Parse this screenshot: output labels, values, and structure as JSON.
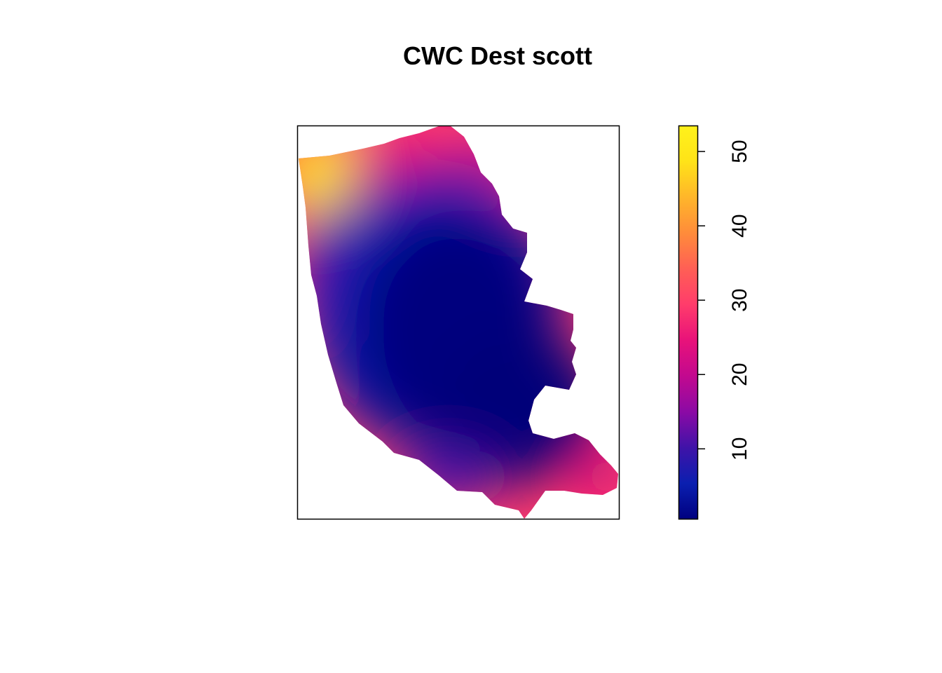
{
  "chart_data": {
    "type": "heatmap",
    "title": "CWC Dest scott",
    "xlabel": "",
    "ylabel": "",
    "axes_shown": false,
    "legend": {
      "placement": "right",
      "range": [
        0.5,
        53.5
      ],
      "ticks": [
        10,
        20,
        30,
        40,
        50
      ],
      "tick_labels": [
        "10",
        "20",
        "30",
        "40",
        "50"
      ]
    },
    "colors": {
      "palette": [
        "#00007F",
        "#0A1FB0",
        "#3F13A8",
        "#8B0AA5",
        "#C2098F",
        "#E8127A",
        "#FF3C6B",
        "#FF5F55",
        "#FF8C3A",
        "#FFB62A",
        "#FFE318",
        "#FFF21B"
      ],
      "low_value_core": "#00027A",
      "frame": "#000000",
      "background": "#FFFFFF"
    },
    "description_free": true
  }
}
